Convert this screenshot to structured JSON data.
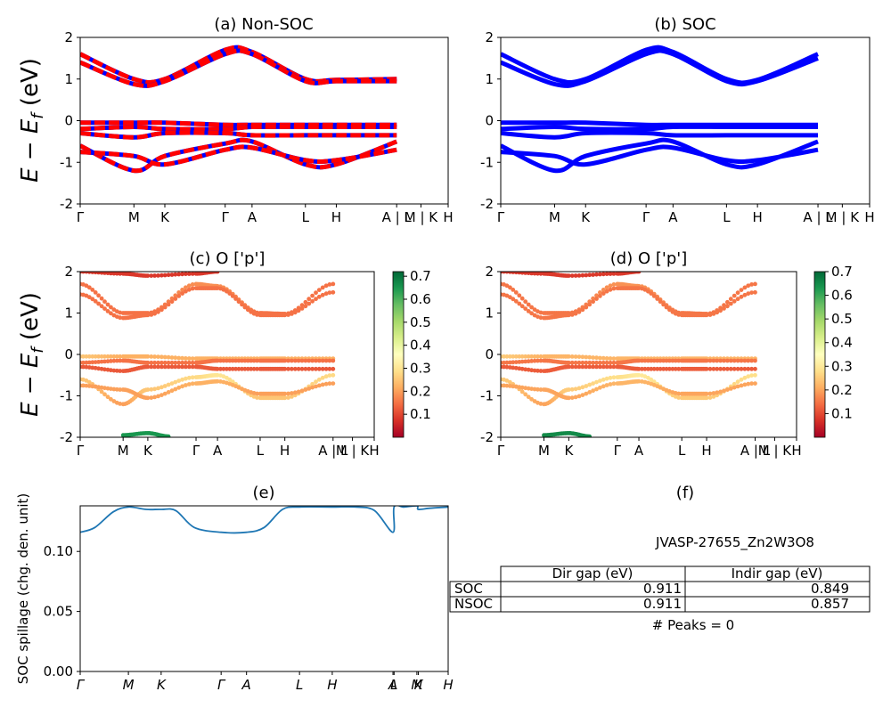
{
  "figure": {
    "ylabel_math": "E − E",
    "ylabel_sub": "f",
    "ylabel_unit": " (eV)"
  },
  "kpath_labels": [
    "Γ",
    "M",
    "K",
    "Γ",
    "A",
    "L",
    "H",
    "A | L",
    "M | K",
    "H"
  ],
  "kpath_positions": [
    0.0,
    0.146,
    0.23,
    0.394,
    0.467,
    0.612,
    0.696,
    0.86,
    0.926,
    1.0
  ],
  "spillage_labels": [
    "Γ",
    "M",
    "K",
    "Γ",
    "A",
    "L",
    "H",
    "A",
    "L",
    "M",
    "K",
    "H"
  ],
  "spillage_positions": [
    0.0,
    0.131,
    0.22,
    0.383,
    0.452,
    0.596,
    0.685,
    0.85,
    0.853,
    0.915,
    0.919,
    1.0
  ],
  "colors": {
    "nonsoc_band_a": "#ff0000",
    "nonsoc_band_b": "#0000ff",
    "soc_band": "#0000ff",
    "spillage_line": "#1f77b4",
    "colormap": "RdYlGn"
  },
  "colorbar_c": {
    "ticks": [
      "0.1",
      "0.2",
      "0.3",
      "0.4",
      "0.5",
      "0.6",
      "0.7"
    ],
    "min": 0.0,
    "max": 0.72
  },
  "colorbar_d": {
    "ticks": [
      "0.1",
      "0.2",
      "0.3",
      "0.4",
      "0.5",
      "0.6",
      "0.7"
    ],
    "min": 0.0,
    "max": 0.7
  },
  "info": {
    "jid": "JVASP-27655_Zn2W3O8",
    "peaks": "# Peaks = 0",
    "table": {
      "headers": [
        "Dir gap (eV)",
        "Indir gap (eV)"
      ],
      "rows": [
        {
          "label": "SOC",
          "dir": "0.911",
          "indir": "0.849"
        },
        {
          "label": "NSOC",
          "dir": "0.911",
          "indir": "0.857"
        }
      ]
    }
  },
  "chart_data": [
    {
      "type": "line",
      "title": "(a) Non-SOC",
      "ylabel": "E − E_f (eV)",
      "ylim": [
        -2,
        2
      ],
      "yticks": [
        -2,
        -1,
        0,
        1,
        2
      ],
      "series": [
        {
          "x": [
            0,
            0.146,
            0.23,
            0.394,
            0.467,
            0.612,
            0.696,
            0.86
          ],
          "values": [
            1.6,
            1.0,
            1.0,
            1.7,
            1.65,
            1.0,
            0.98,
            1.0
          ]
        },
        {
          "x": [
            0,
            0.146,
            0.23,
            0.394,
            0.467,
            0.612,
            0.696,
            0.86
          ],
          "values": [
            1.4,
            0.88,
            0.95,
            1.6,
            1.6,
            0.95,
            0.95,
            0.95
          ]
        },
        {
          "x": [
            0,
            0.146,
            0.23,
            0.394,
            0.467,
            0.612,
            0.696,
            0.86
          ],
          "values": [
            -0.05,
            -0.05,
            -0.05,
            -0.1,
            -0.1,
            -0.1,
            -0.1,
            -0.1
          ]
        },
        {
          "x": [
            0,
            0.146,
            0.23,
            0.394,
            0.467,
            0.612,
            0.696,
            0.86
          ],
          "values": [
            -0.2,
            -0.15,
            -0.2,
            -0.2,
            -0.15,
            -0.15,
            -0.15,
            -0.15
          ]
        },
        {
          "x": [
            0,
            0.146,
            0.23,
            0.394,
            0.467,
            0.612,
            0.696,
            0.86
          ],
          "values": [
            -0.3,
            -0.4,
            -0.3,
            -0.3,
            -0.35,
            -0.35,
            -0.35,
            -0.35
          ]
        },
        {
          "x": [
            0,
            0.146,
            0.23,
            0.394,
            0.467,
            0.612,
            0.696,
            0.86
          ],
          "values": [
            -0.6,
            -1.2,
            -0.85,
            -0.55,
            -0.5,
            -1.05,
            -1.05,
            -0.5
          ]
        },
        {
          "x": [
            0,
            0.146,
            0.23,
            0.394,
            0.467,
            0.612,
            0.696,
            0.86
          ],
          "values": [
            -0.75,
            -0.85,
            -1.05,
            -0.7,
            -0.65,
            -0.95,
            -0.95,
            -0.7
          ]
        }
      ]
    },
    {
      "type": "line",
      "title": "(b) SOC",
      "ylim": [
        -2,
        2
      ],
      "yticks": [
        -2,
        -1,
        0,
        1,
        2
      ],
      "series": [
        {
          "x": [
            0,
            0.146,
            0.23,
            0.394,
            0.467,
            0.612,
            0.696,
            0.86
          ],
          "values": [
            1.6,
            1.0,
            1.0,
            1.7,
            1.65,
            1.0,
            0.98,
            1.6
          ]
        },
        {
          "x": [
            0,
            0.146,
            0.23,
            0.394,
            0.467,
            0.612,
            0.696,
            0.86
          ],
          "values": [
            1.4,
            0.88,
            0.95,
            1.6,
            1.6,
            0.95,
            0.95,
            1.5
          ]
        },
        {
          "x": [
            0,
            0.146,
            0.23,
            0.394,
            0.467,
            0.612,
            0.696,
            0.86
          ],
          "values": [
            -0.05,
            -0.05,
            -0.05,
            -0.1,
            -0.1,
            -0.1,
            -0.1,
            -0.1
          ]
        },
        {
          "x": [
            0,
            0.146,
            0.23,
            0.394,
            0.467,
            0.612,
            0.696,
            0.86
          ],
          "values": [
            -0.2,
            -0.15,
            -0.2,
            -0.2,
            -0.15,
            -0.15,
            -0.15,
            -0.15
          ]
        },
        {
          "x": [
            0,
            0.146,
            0.23,
            0.394,
            0.467,
            0.612,
            0.696,
            0.86
          ],
          "values": [
            -0.3,
            -0.4,
            -0.3,
            -0.3,
            -0.35,
            -0.35,
            -0.35,
            -0.35
          ]
        },
        {
          "x": [
            0,
            0.146,
            0.23,
            0.394,
            0.467,
            0.612,
            0.696,
            0.86
          ],
          "values": [
            -0.6,
            -1.2,
            -0.85,
            -0.55,
            -0.5,
            -1.05,
            -1.05,
            -0.5
          ]
        },
        {
          "x": [
            0,
            0.146,
            0.23,
            0.394,
            0.467,
            0.612,
            0.696,
            0.86
          ],
          "values": [
            -0.75,
            -0.85,
            -1.05,
            -0.7,
            -0.65,
            -0.95,
            -0.95,
            -0.7
          ]
        }
      ]
    },
    {
      "type": "scatter",
      "title": "(c)  O ['p']",
      "ylabel": "E − E_f (eV)",
      "ylim": [
        -2,
        2
      ],
      "yticks": [
        -2,
        -1,
        0,
        1,
        2
      ],
      "series": [
        {
          "x": [
            0,
            0.146,
            0.23,
            0.394,
            0.467,
            0.612,
            0.696,
            0.86
          ],
          "values": [
            1.7,
            1.0,
            1.0,
            1.7,
            1.65,
            1.0,
            0.98,
            1.7
          ],
          "weights": [
            0.15,
            0.15,
            0.15,
            0.18,
            0.18,
            0.15,
            0.15,
            0.15
          ]
        },
        {
          "x": [
            0,
            0.146,
            0.23,
            0.394,
            0.467,
            0.612,
            0.696,
            0.86
          ],
          "values": [
            1.45,
            0.88,
            0.95,
            1.6,
            1.6,
            0.95,
            0.95,
            1.5
          ],
          "weights": [
            0.15,
            0.15,
            0.15,
            0.15,
            0.15,
            0.15,
            0.15,
            0.15
          ]
        },
        {
          "x": [
            0,
            0.146,
            0.23,
            0.394,
            0.467,
            0.612,
            0.696,
            0.86
          ],
          "values": [
            -0.05,
            -0.05,
            -0.05,
            -0.1,
            -0.1,
            -0.1,
            -0.1,
            -0.1
          ],
          "weights": [
            0.25,
            0.22,
            0.22,
            0.22,
            0.22,
            0.22,
            0.22,
            0.22
          ]
        },
        {
          "x": [
            0,
            0.146,
            0.23,
            0.394,
            0.467,
            0.612,
            0.696,
            0.86
          ],
          "values": [
            -0.2,
            -0.15,
            -0.2,
            -0.2,
            -0.15,
            -0.15,
            -0.15,
            -0.15
          ],
          "weights": [
            0.15,
            0.15,
            0.15,
            0.15,
            0.15,
            0.15,
            0.15,
            0.15
          ]
        },
        {
          "x": [
            0,
            0.146,
            0.23,
            0.394,
            0.467,
            0.612,
            0.696,
            0.86
          ],
          "values": [
            -0.3,
            -0.4,
            -0.3,
            -0.3,
            -0.35,
            -0.35,
            -0.35,
            -0.35
          ],
          "weights": [
            0.12,
            0.12,
            0.12,
            0.12,
            0.12,
            0.12,
            0.12,
            0.12
          ]
        },
        {
          "x": [
            0,
            0.146,
            0.23,
            0.394,
            0.467,
            0.612,
            0.696,
            0.86
          ],
          "values": [
            -0.6,
            -1.2,
            -0.85,
            -0.55,
            -0.5,
            -1.05,
            -1.05,
            -0.5
          ],
          "weights": [
            0.25,
            0.2,
            0.25,
            0.28,
            0.3,
            0.25,
            0.25,
            0.28
          ]
        },
        {
          "x": [
            0,
            0.146,
            0.23,
            0.394,
            0.467,
            0.612,
            0.696,
            0.86
          ],
          "values": [
            -0.75,
            -0.85,
            -1.05,
            -0.7,
            -0.65,
            -0.95,
            -0.95,
            -0.7
          ],
          "weights": [
            0.2,
            0.2,
            0.2,
            0.22,
            0.22,
            0.2,
            0.2,
            0.2
          ]
        },
        {
          "x": [
            0.146,
            0.23,
            0.3
          ],
          "values": [
            -1.95,
            -1.9,
            -1.98
          ],
          "weights": [
            0.65,
            0.65,
            0.65
          ]
        },
        {
          "x": [
            0.0,
            0.146,
            0.23,
            0.394,
            0.467
          ],
          "values": [
            2.0,
            1.95,
            1.9,
            1.95,
            2.0
          ],
          "weights": [
            0.08,
            0.08,
            0.08,
            0.08,
            0.08
          ]
        }
      ]
    },
    {
      "type": "scatter",
      "title": "(d) O ['p']",
      "ylim": [
        -2,
        2
      ],
      "yticks": [
        -2,
        -1,
        0,
        1,
        2
      ],
      "series": [
        {
          "x": [
            0,
            0.146,
            0.23,
            0.394,
            0.467,
            0.612,
            0.696,
            0.86
          ],
          "values": [
            1.7,
            1.0,
            1.0,
            1.7,
            1.65,
            1.0,
            0.98,
            1.7
          ],
          "weights": [
            0.15,
            0.15,
            0.15,
            0.18,
            0.18,
            0.15,
            0.15,
            0.15
          ]
        },
        {
          "x": [
            0,
            0.146,
            0.23,
            0.394,
            0.467,
            0.612,
            0.696,
            0.86
          ],
          "values": [
            1.45,
            0.88,
            0.95,
            1.6,
            1.6,
            0.95,
            0.95,
            1.5
          ],
          "weights": [
            0.15,
            0.15,
            0.15,
            0.15,
            0.15,
            0.15,
            0.15,
            0.15
          ]
        },
        {
          "x": [
            0,
            0.146,
            0.23,
            0.394,
            0.467,
            0.612,
            0.696,
            0.86
          ],
          "values": [
            -0.05,
            -0.05,
            -0.05,
            -0.1,
            -0.1,
            -0.1,
            -0.1,
            -0.1
          ],
          "weights": [
            0.25,
            0.22,
            0.22,
            0.22,
            0.22,
            0.22,
            0.22,
            0.22
          ]
        },
        {
          "x": [
            0,
            0.146,
            0.23,
            0.394,
            0.467,
            0.612,
            0.696,
            0.86
          ],
          "values": [
            -0.2,
            -0.15,
            -0.2,
            -0.2,
            -0.15,
            -0.15,
            -0.15,
            -0.15
          ],
          "weights": [
            0.15,
            0.15,
            0.15,
            0.15,
            0.15,
            0.15,
            0.15,
            0.15
          ]
        },
        {
          "x": [
            0,
            0.146,
            0.23,
            0.394,
            0.467,
            0.612,
            0.696,
            0.86
          ],
          "values": [
            -0.3,
            -0.4,
            -0.3,
            -0.3,
            -0.35,
            -0.35,
            -0.35,
            -0.35
          ],
          "weights": [
            0.12,
            0.12,
            0.12,
            0.12,
            0.12,
            0.12,
            0.12,
            0.12
          ]
        },
        {
          "x": [
            0,
            0.146,
            0.23,
            0.394,
            0.467,
            0.612,
            0.696,
            0.86
          ],
          "values": [
            -0.6,
            -1.2,
            -0.85,
            -0.55,
            -0.5,
            -1.05,
            -1.05,
            -0.5
          ],
          "weights": [
            0.25,
            0.2,
            0.25,
            0.28,
            0.3,
            0.25,
            0.25,
            0.28
          ]
        },
        {
          "x": [
            0,
            0.146,
            0.23,
            0.394,
            0.467,
            0.612,
            0.696,
            0.86
          ],
          "values": [
            -0.75,
            -0.85,
            -1.05,
            -0.7,
            -0.65,
            -0.95,
            -0.95,
            -0.7
          ],
          "weights": [
            0.2,
            0.2,
            0.2,
            0.22,
            0.22,
            0.2,
            0.2,
            0.2
          ]
        },
        {
          "x": [
            0.146,
            0.23,
            0.3
          ],
          "values": [
            -1.95,
            -1.9,
            -1.98
          ],
          "weights": [
            0.65,
            0.65,
            0.65
          ]
        },
        {
          "x": [
            0.0,
            0.146,
            0.23,
            0.394,
            0.467
          ],
          "values": [
            2.0,
            1.95,
            1.9,
            1.95,
            2.0
          ],
          "weights": [
            0.08,
            0.08,
            0.08,
            0.08,
            0.08
          ]
        }
      ]
    },
    {
      "type": "line",
      "title": "(e)",
      "ylabel": "SOC spillage (chg. den. unit)",
      "ylim": [
        0,
        0.138
      ],
      "yticks": [
        "0.00",
        "0.05",
        "0.10"
      ],
      "yticks_values": [
        0.0,
        0.05,
        0.1
      ],
      "series": [
        {
          "x": [
            0,
            0.04,
            0.09,
            0.131,
            0.18,
            0.22,
            0.26,
            0.31,
            0.383,
            0.452,
            0.5,
            0.55,
            0.596,
            0.685,
            0.75,
            0.8,
            0.85,
            0.853,
            0.88,
            0.915,
            0.919,
            0.95,
            1.0
          ],
          "values": [
            0.116,
            0.12,
            0.133,
            0.137,
            0.135,
            0.135,
            0.134,
            0.12,
            0.116,
            0.116,
            0.12,
            0.135,
            0.137,
            0.137,
            0.137,
            0.134,
            0.116,
            0.137,
            0.137,
            0.138,
            0.135,
            0.136,
            0.137
          ]
        }
      ]
    }
  ]
}
